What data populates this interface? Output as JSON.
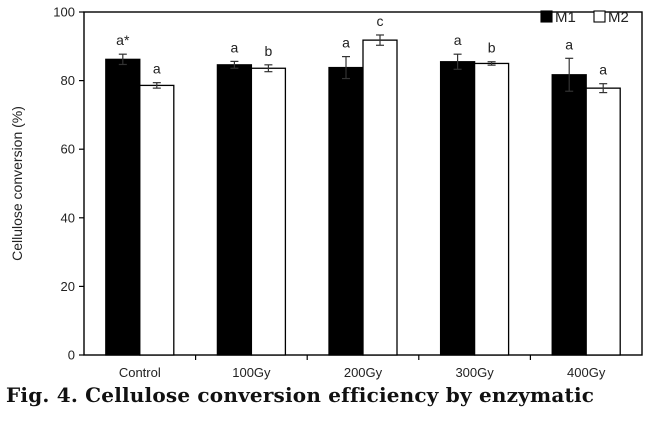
{
  "caption": "Fig. 4. Cellulose conversion efficiency by enzymatic",
  "chart_data": {
    "type": "bar",
    "ylabel": "Cellulose conversion (%)",
    "xlabel": "",
    "ylim": [
      0,
      100
    ],
    "yticks": [
      0,
      20,
      40,
      60,
      80,
      100
    ],
    "categories": [
      "Control",
      "100Gy",
      "200Gy",
      "300Gy",
      "400Gy"
    ],
    "legend_position": "top-right",
    "grid": false,
    "series": [
      {
        "name": "M1",
        "color": "#000000",
        "values": [
          86.2,
          84.6,
          83.8,
          85.5,
          81.7
        ],
        "errors": [
          1.5,
          1.0,
          3.2,
          2.2,
          4.8
        ],
        "labels": [
          "a*",
          "a",
          "a",
          "a",
          "a"
        ]
      },
      {
        "name": "M2",
        "color": "#ffffff",
        "values": [
          78.6,
          83.6,
          91.8,
          85.0,
          77.8
        ],
        "errors": [
          0.8,
          1.0,
          1.5,
          0.5,
          1.3
        ],
        "labels": [
          "a",
          "b",
          "c",
          "b",
          "a"
        ]
      }
    ]
  }
}
